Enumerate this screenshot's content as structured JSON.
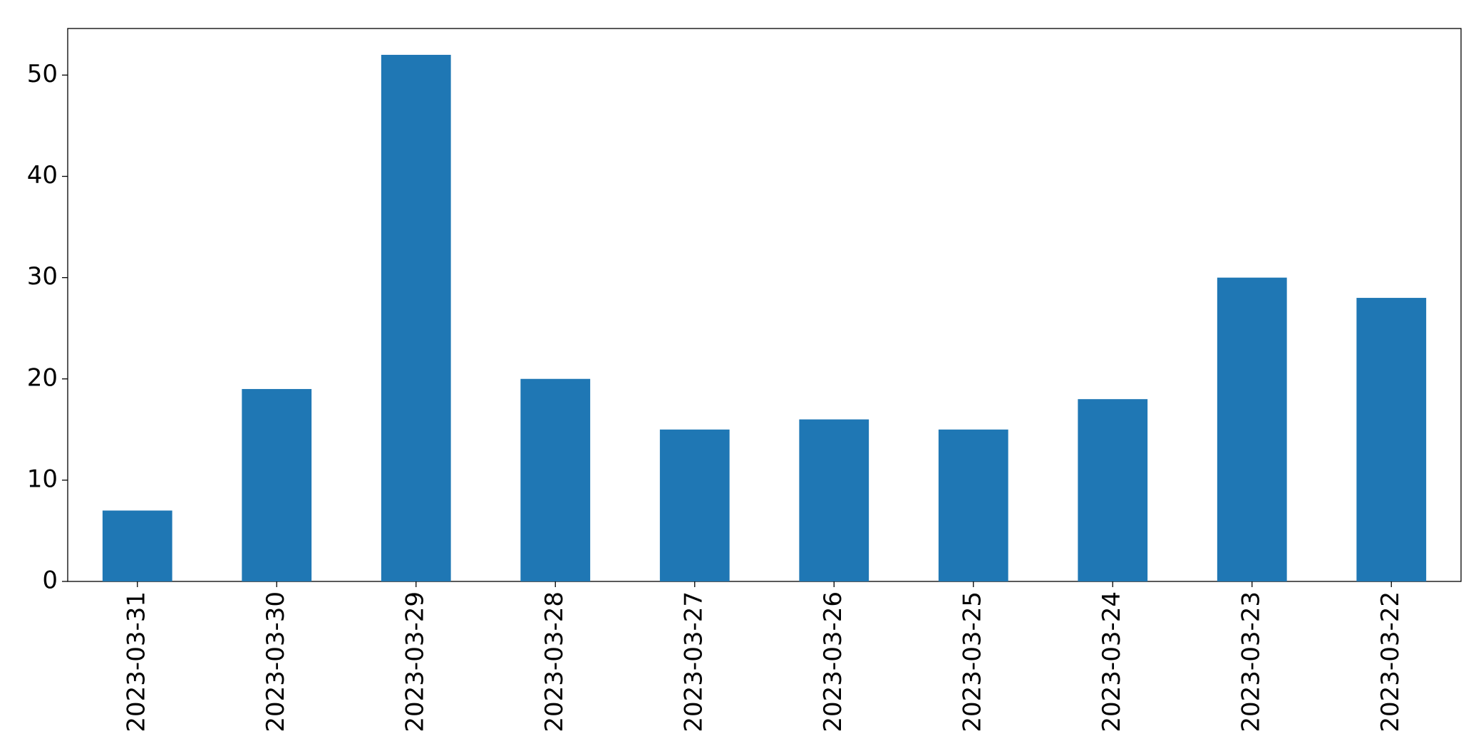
{
  "chart_data": {
    "type": "bar",
    "categories": [
      "2023-03-31",
      "2023-03-30",
      "2023-03-29",
      "2023-03-28",
      "2023-03-27",
      "2023-03-26",
      "2023-03-25",
      "2023-03-24",
      "2023-03-23",
      "2023-03-22"
    ],
    "values": [
      7,
      19,
      52,
      20,
      15,
      16,
      15,
      18,
      30,
      28
    ],
    "color": "#1f77b4",
    "ylim": [
      0,
      54.6
    ],
    "yticks": [
      0,
      10,
      20,
      30,
      40,
      50
    ],
    "grid": false
  }
}
